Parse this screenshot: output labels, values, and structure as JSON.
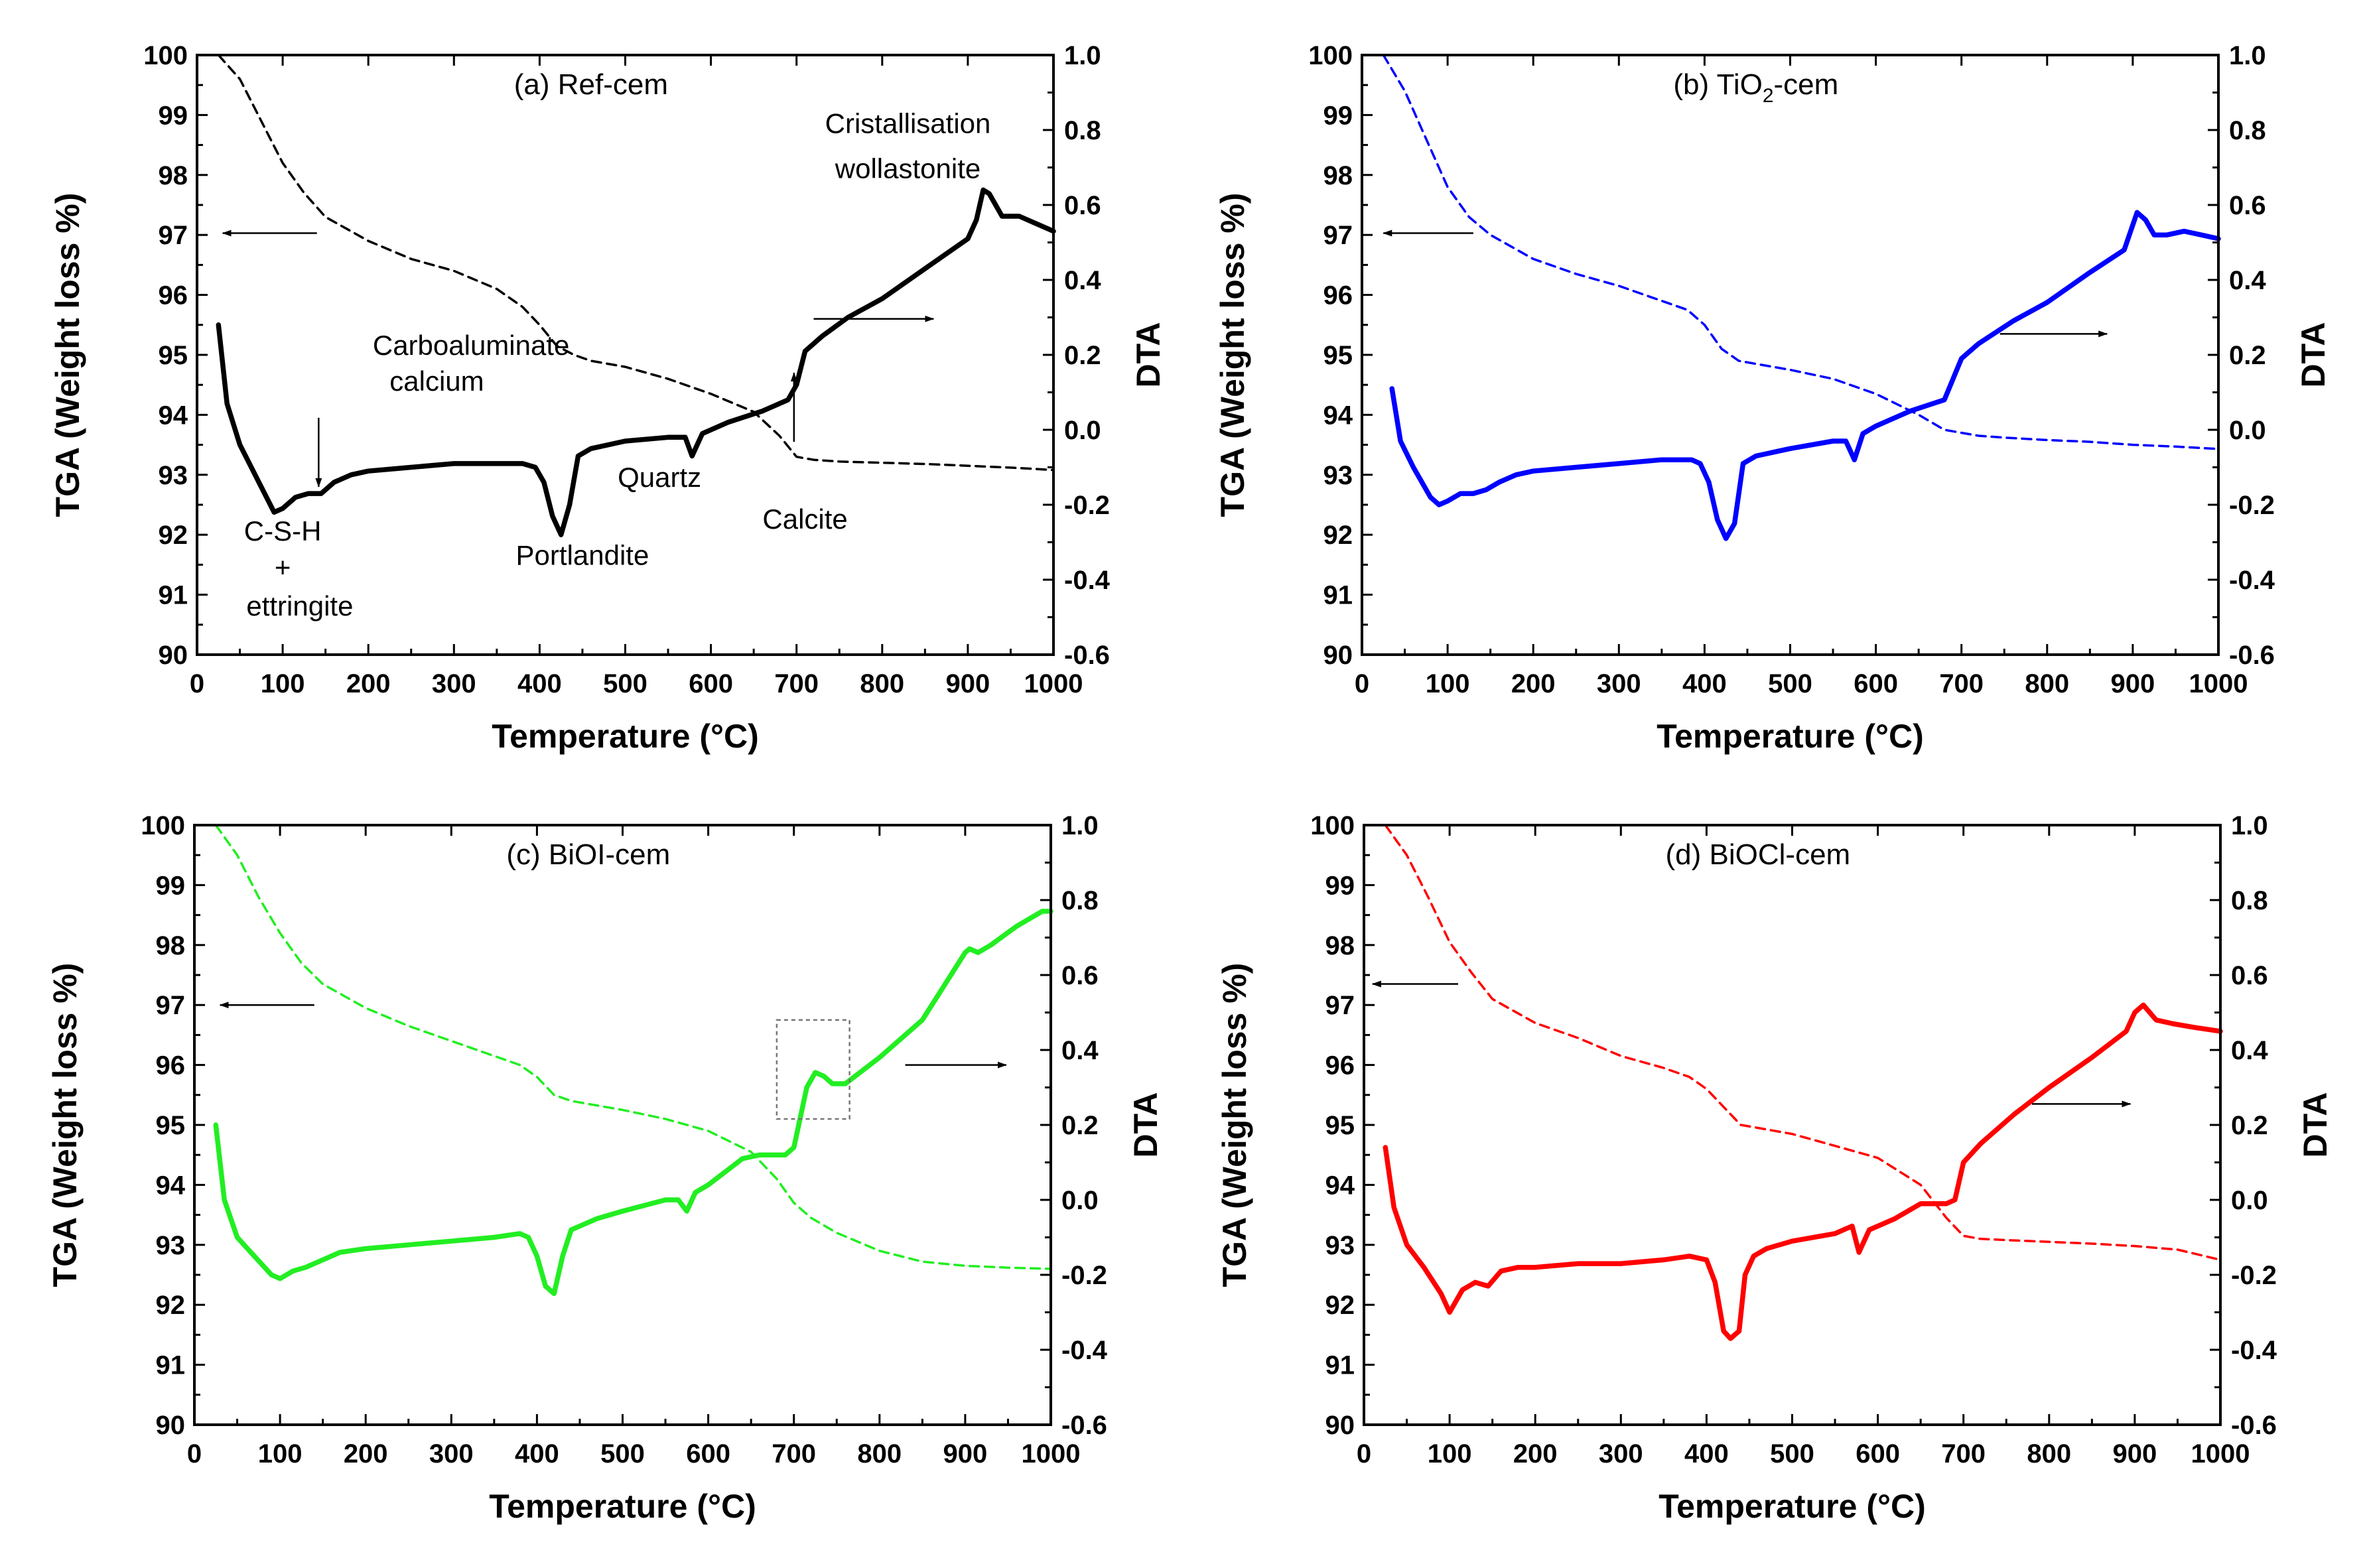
{
  "chart_data": [
    {
      "id": "a",
      "type": "line",
      "title": "(a) Ref-cem",
      "title_parts": {
        "prefix": "(a) Ref-cem",
        "sub": "",
        "suffix": ""
      },
      "xlabel": "Temperature (°C)",
      "ylabel_left": "TGA (Weight loss %)",
      "ylabel_right": "DTA",
      "xlim": [
        0,
        1000
      ],
      "ylim_left": [
        90,
        100
      ],
      "ylim_right": [
        -0.6,
        1.0
      ],
      "x_ticks": [
        "0",
        "100",
        "200",
        "300",
        "400",
        "500",
        "600",
        "700",
        "800",
        "900",
        "1000"
      ],
      "y_left_ticks": [
        "90",
        "91",
        "92",
        "93",
        "94",
        "95",
        "96",
        "97",
        "98",
        "99",
        "100"
      ],
      "y_right_ticks": [
        "-0.6",
        "-0.4",
        "-0.2",
        "0.0",
        "0.2",
        "0.4",
        "0.6",
        "0.8",
        "1.0"
      ],
      "color": "#000000",
      "series": [
        {
          "name": "TGA",
          "axis": "left",
          "style": "dashed",
          "x": [
            25,
            50,
            75,
            100,
            125,
            150,
            200,
            250,
            300,
            350,
            380,
            400,
            420,
            440,
            460,
            500,
            550,
            600,
            650,
            680,
            700,
            720,
            750,
            800,
            850,
            900,
            950,
            1000
          ],
          "y": [
            100,
            99.6,
            98.9,
            98.2,
            97.7,
            97.3,
            96.9,
            96.6,
            96.4,
            96.1,
            95.8,
            95.5,
            95.15,
            95.0,
            94.9,
            94.8,
            94.6,
            94.35,
            94.05,
            93.65,
            93.3,
            93.25,
            93.22,
            93.2,
            93.18,
            93.15,
            93.12,
            93.08
          ]
        },
        {
          "name": "DTA",
          "axis": "right",
          "style": "solid",
          "x": [
            25,
            35,
            50,
            70,
            90,
            100,
            115,
            130,
            145,
            160,
            180,
            200,
            250,
            300,
            350,
            380,
            395,
            405,
            415,
            425,
            435,
            445,
            460,
            500,
            550,
            570,
            578,
            590,
            620,
            660,
            690,
            700,
            710,
            730,
            760,
            800,
            850,
            900,
            910,
            918,
            925,
            940,
            960,
            980,
            1000
          ],
          "y": [
            0.28,
            0.07,
            -0.04,
            -0.13,
            -0.22,
            -0.21,
            -0.18,
            -0.17,
            -0.17,
            -0.14,
            -0.12,
            -0.11,
            -0.1,
            -0.09,
            -0.09,
            -0.09,
            -0.1,
            -0.14,
            -0.23,
            -0.28,
            -0.2,
            -0.07,
            -0.05,
            -0.03,
            -0.02,
            -0.02,
            -0.07,
            -0.01,
            0.02,
            0.05,
            0.08,
            0.12,
            0.21,
            0.25,
            0.3,
            0.35,
            0.43,
            0.51,
            0.56,
            0.64,
            0.63,
            0.57,
            0.57,
            0.55,
            0.53
          ]
        }
      ],
      "annotations": [
        {
          "text": "Carboaluminate",
          "x": 320,
          "y_left": 95.0,
          "anchor": "middle"
        },
        {
          "text": "calcium",
          "x": 280,
          "y_left": 94.4,
          "anchor": "middle"
        },
        {
          "text": "C-S-H",
          "x": 100,
          "y_left": 91.9,
          "anchor": "middle"
        },
        {
          "text": "+",
          "x": 100,
          "y_left": 91.3,
          "anchor": "middle"
        },
        {
          "text": "ettringite",
          "x": 120,
          "y_left": 90.65,
          "anchor": "middle"
        },
        {
          "text": "Portlandite",
          "x": 450,
          "y_left": 91.5,
          "anchor": "middle"
        },
        {
          "text": "Quartz",
          "x": 540,
          "y_left": 92.8,
          "anchor": "middle"
        },
        {
          "text": "Calcite",
          "x": 710,
          "y_left": 92.1,
          "anchor": "middle"
        },
        {
          "text": "Cristallisation",
          "x": 830,
          "y_left": 98.7,
          "anchor": "middle"
        },
        {
          "text": "wollastonite",
          "x": 830,
          "y_left": 97.95,
          "anchor": "middle"
        }
      ],
      "title_pos": {
        "x": 460,
        "y_left": 99.35
      },
      "arrows": [
        {
          "from": [
            140,
            97.03
          ],
          "to": [
            30,
            97.03
          ]
        },
        {
          "from": [
            720,
            95.6
          ],
          "to": [
            860,
            95.6
          ]
        },
        {
          "from": [
            142,
            93.95
          ],
          "to": [
            142,
            92.8
          ]
        },
        {
          "from": [
            697,
            93.55
          ],
          "to": [
            697,
            94.7
          ]
        }
      ],
      "inset_box": null
    },
    {
      "id": "b",
      "type": "line",
      "title": "(b) TiO2-cem",
      "title_parts": {
        "prefix": "(b) TiO",
        "sub": "2",
        "suffix": "-cem"
      },
      "xlabel": "Temperature (°C)",
      "ylabel_left": "TGA (Weight loss %)",
      "ylabel_right": "DTA",
      "xlim": [
        0,
        1000
      ],
      "ylim_left": [
        90,
        100
      ],
      "ylim_right": [
        -0.6,
        1.0
      ],
      "x_ticks": [
        "0",
        "100",
        "200",
        "300",
        "400",
        "500",
        "600",
        "700",
        "800",
        "900",
        "1000"
      ],
      "y_left_ticks": [
        "90",
        "91",
        "92",
        "93",
        "94",
        "95",
        "96",
        "97",
        "98",
        "99",
        "100"
      ],
      "y_right_ticks": [
        "-0.6",
        "-0.4",
        "-0.2",
        "0.0",
        "0.2",
        "0.4",
        "0.6",
        "0.8",
        "1.0"
      ],
      "color": "#0000ff",
      "series": [
        {
          "name": "TGA",
          "axis": "left",
          "style": "dashed",
          "x": [
            25,
            50,
            75,
            100,
            125,
            150,
            200,
            250,
            300,
            350,
            380,
            400,
            420,
            440,
            460,
            500,
            550,
            600,
            650,
            680,
            700,
            720,
            750,
            800,
            850,
            900,
            950,
            1000
          ],
          "y": [
            100,
            99.4,
            98.6,
            97.8,
            97.3,
            97.0,
            96.6,
            96.35,
            96.15,
            95.9,
            95.75,
            95.5,
            95.1,
            94.9,
            94.85,
            94.75,
            94.6,
            94.35,
            94.0,
            93.75,
            93.7,
            93.65,
            93.62,
            93.58,
            93.55,
            93.5,
            93.47,
            93.43
          ]
        },
        {
          "name": "DTA",
          "axis": "right",
          "style": "solid",
          "x": [
            35,
            45,
            60,
            80,
            90,
            100,
            115,
            130,
            145,
            160,
            180,
            200,
            250,
            300,
            350,
            385,
            395,
            405,
            415,
            425,
            435,
            445,
            460,
            500,
            550,
            565,
            575,
            585,
            600,
            640,
            680,
            700,
            720,
            760,
            800,
            850,
            890,
            905,
            915,
            925,
            940,
            960,
            980,
            1000
          ],
          "y": [
            0.11,
            -0.03,
            -0.1,
            -0.18,
            -0.2,
            -0.19,
            -0.17,
            -0.17,
            -0.16,
            -0.14,
            -0.12,
            -0.11,
            -0.1,
            -0.09,
            -0.08,
            -0.08,
            -0.09,
            -0.14,
            -0.24,
            -0.29,
            -0.25,
            -0.09,
            -0.07,
            -0.05,
            -0.03,
            -0.03,
            -0.08,
            -0.01,
            0.01,
            0.05,
            0.08,
            0.19,
            0.23,
            0.29,
            0.34,
            0.42,
            0.48,
            0.58,
            0.56,
            0.52,
            0.52,
            0.53,
            0.52,
            0.51
          ]
        }
      ],
      "annotations": [],
      "title_pos": {
        "x": 460,
        "y_left": 99.35
      },
      "arrows": [
        {
          "from": [
            130,
            97.03
          ],
          "to": [
            25,
            97.03
          ]
        },
        {
          "from": [
            745,
            95.35
          ],
          "to": [
            870,
            95.35
          ]
        }
      ],
      "inset_box": null
    },
    {
      "id": "c",
      "type": "line",
      "title": "(c) BiOI-cem",
      "title_parts": {
        "prefix": "(c) BiOI-cem",
        "sub": "",
        "suffix": ""
      },
      "xlabel": "Temperature (°C)",
      "ylabel_left": "TGA (Weight loss %)",
      "ylabel_right": "DTA",
      "xlim": [
        0,
        1000
      ],
      "ylim_left": [
        90,
        100
      ],
      "ylim_right": [
        -0.6,
        1.0
      ],
      "x_ticks": [
        "0",
        "100",
        "200",
        "300",
        "400",
        "500",
        "600",
        "700",
        "800",
        "900",
        "1000"
      ],
      "y_left_ticks": [
        "90",
        "91",
        "92",
        "93",
        "94",
        "95",
        "96",
        "97",
        "98",
        "99",
        "100"
      ],
      "y_right_ticks": [
        "-0.6",
        "-0.4",
        "-0.2",
        "0.0",
        "0.2",
        "0.4",
        "0.6",
        "0.8",
        "1.0"
      ],
      "color": "#22ee22",
      "series": [
        {
          "name": "TGA",
          "axis": "left",
          "style": "dashed",
          "x": [
            25,
            50,
            75,
            100,
            125,
            150,
            200,
            250,
            300,
            350,
            380,
            400,
            420,
            440,
            460,
            500,
            550,
            600,
            650,
            680,
            700,
            720,
            750,
            800,
            850,
            900,
            950,
            1000
          ],
          "y": [
            100,
            99.5,
            98.8,
            98.2,
            97.7,
            97.35,
            96.95,
            96.65,
            96.4,
            96.15,
            96.0,
            95.8,
            95.5,
            95.4,
            95.35,
            95.25,
            95.1,
            94.9,
            94.55,
            94.1,
            93.7,
            93.45,
            93.2,
            92.9,
            92.72,
            92.65,
            92.62,
            92.6
          ]
        },
        {
          "name": "DTA",
          "axis": "right",
          "style": "solid",
          "x": [
            25,
            35,
            50,
            70,
            90,
            100,
            115,
            130,
            150,
            170,
            200,
            250,
            300,
            350,
            380,
            390,
            400,
            410,
            420,
            430,
            440,
            450,
            470,
            500,
            550,
            565,
            575,
            585,
            600,
            640,
            660,
            690,
            700,
            715,
            725,
            735,
            745,
            760,
            800,
            850,
            900,
            905,
            915,
            930,
            960,
            990,
            1000
          ],
          "y": [
            0.2,
            0.0,
            -0.1,
            -0.15,
            -0.2,
            -0.21,
            -0.19,
            -0.18,
            -0.16,
            -0.14,
            -0.13,
            -0.12,
            -0.11,
            -0.1,
            -0.09,
            -0.1,
            -0.15,
            -0.23,
            -0.25,
            -0.15,
            -0.08,
            -0.07,
            -0.05,
            -0.03,
            0.0,
            0.0,
            -0.03,
            0.02,
            0.04,
            0.11,
            0.12,
            0.12,
            0.14,
            0.3,
            0.34,
            0.33,
            0.31,
            0.31,
            0.38,
            0.48,
            0.66,
            0.67,
            0.66,
            0.68,
            0.73,
            0.77,
            0.77
          ]
        }
      ],
      "annotations": [],
      "title_pos": {
        "x": 460,
        "y_left": 99.35
      },
      "arrows": [
        {
          "from": [
            140,
            97.0
          ],
          "to": [
            30,
            97.0
          ]
        },
        {
          "from": [
            830,
            96.0
          ],
          "to": [
            948,
            96.0
          ]
        }
      ],
      "inset_box": {
        "x0": 680,
        "x1": 765,
        "y0_left": 95.1,
        "y1_left": 96.75
      }
    },
    {
      "id": "d",
      "type": "line",
      "title": "(d) BiOCl-cem",
      "title_parts": {
        "prefix": "(d) BiOCl-cem",
        "sub": "",
        "suffix": ""
      },
      "xlabel": "Temperature (°C)",
      "ylabel_left": "TGA (Weight loss %)",
      "ylabel_right": "DTA",
      "xlim": [
        0,
        1000
      ],
      "ylim_left": [
        90,
        100
      ],
      "ylim_right": [
        -0.6,
        1.0
      ],
      "x_ticks": [
        "0",
        "100",
        "200",
        "300",
        "400",
        "500",
        "600",
        "700",
        "800",
        "900",
        "1000"
      ],
      "y_left_ticks": [
        "90",
        "91",
        "92",
        "93",
        "94",
        "95",
        "96",
        "97",
        "98",
        "99",
        "100"
      ],
      "y_right_ticks": [
        "-0.6",
        "-0.4",
        "-0.2",
        "0.0",
        "0.2",
        "0.4",
        "0.6",
        "0.8",
        "1.0"
      ],
      "color": "#ff0000",
      "series": [
        {
          "name": "TGA",
          "axis": "left",
          "style": "dashed",
          "x": [
            25,
            50,
            75,
            100,
            125,
            150,
            200,
            250,
            300,
            350,
            380,
            400,
            420,
            440,
            460,
            500,
            550,
            600,
            650,
            680,
            700,
            720,
            750,
            800,
            850,
            900,
            950,
            1000
          ],
          "y": [
            100,
            99.5,
            98.8,
            98.05,
            97.55,
            97.1,
            96.7,
            96.45,
            96.15,
            95.95,
            95.8,
            95.6,
            95.3,
            95.0,
            94.95,
            94.85,
            94.65,
            94.45,
            94.0,
            93.45,
            93.15,
            93.1,
            93.08,
            93.05,
            93.02,
            92.98,
            92.92,
            92.75
          ]
        },
        {
          "name": "DTA",
          "axis": "right",
          "style": "solid",
          "x": [
            25,
            35,
            50,
            70,
            90,
            100,
            115,
            130,
            145,
            160,
            180,
            200,
            250,
            300,
            350,
            380,
            400,
            410,
            420,
            428,
            438,
            445,
            455,
            470,
            500,
            550,
            570,
            578,
            590,
            620,
            650,
            680,
            690,
            700,
            720,
            760,
            800,
            850,
            890,
            900,
            910,
            925,
            945,
            970,
            1000
          ],
          "y": [
            0.14,
            -0.02,
            -0.12,
            -0.18,
            -0.25,
            -0.3,
            -0.24,
            -0.22,
            -0.23,
            -0.19,
            -0.18,
            -0.18,
            -0.17,
            -0.17,
            -0.16,
            -0.15,
            -0.16,
            -0.22,
            -0.35,
            -0.37,
            -0.35,
            -0.2,
            -0.15,
            -0.13,
            -0.11,
            -0.09,
            -0.07,
            -0.14,
            -0.08,
            -0.05,
            -0.01,
            -0.01,
            0.0,
            0.1,
            0.15,
            0.23,
            0.3,
            0.38,
            0.45,
            0.5,
            0.52,
            0.48,
            0.47,
            0.46,
            0.45
          ]
        }
      ],
      "annotations": [],
      "title_pos": {
        "x": 460,
        "y_left": 99.35
      },
      "arrows": [
        {
          "from": [
            110,
            97.35
          ],
          "to": [
            10,
            97.35
          ]
        },
        {
          "from": [
            780,
            95.35
          ],
          "to": [
            895,
            95.35
          ]
        }
      ],
      "inset_box": null
    }
  ]
}
